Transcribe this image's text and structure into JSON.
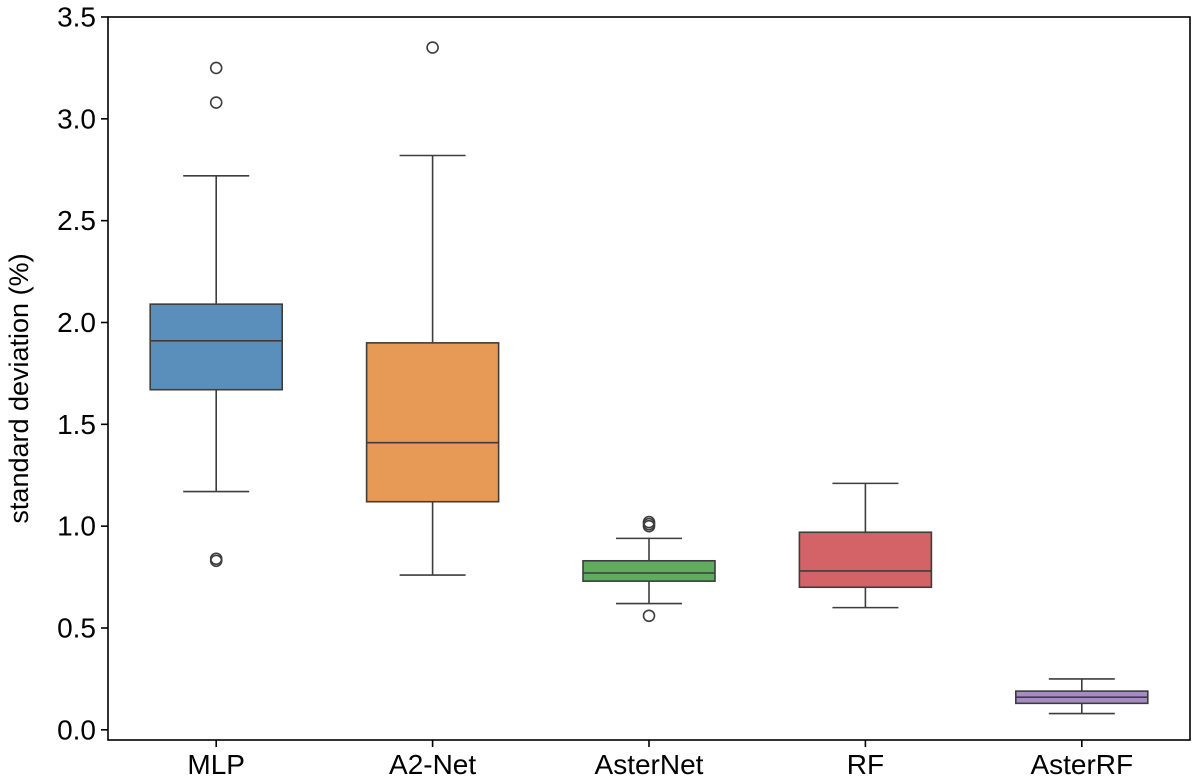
{
  "chart_data": {
    "type": "box",
    "title": "",
    "xlabel": "",
    "ylabel": "standard deviation (%)",
    "ylim": [
      -0.05,
      3.5
    ],
    "yticks": [
      0.0,
      0.5,
      1.0,
      1.5,
      2.0,
      2.5,
      3.0,
      3.5
    ],
    "ytick_labels": [
      "0.0",
      "0.5",
      "1.0",
      "1.5",
      "2.0",
      "2.5",
      "3.0",
      "3.5"
    ],
    "grid": false,
    "categories": [
      "MLP",
      "A2-Net",
      "AsterNet",
      "RF",
      "AsterRF"
    ],
    "series": [
      {
        "name": "MLP",
        "color": "#5a8fbc",
        "whisker_low": 1.17,
        "q1": 1.67,
        "median": 1.91,
        "q3": 2.09,
        "whisker_high": 2.72,
        "outliers": [
          0.83,
          0.84,
          3.08,
          3.25
        ]
      },
      {
        "name": "A2-Net",
        "color": "#e69a55",
        "whisker_low": 0.76,
        "q1": 1.12,
        "median": 1.41,
        "q3": 1.9,
        "whisker_high": 2.82,
        "outliers": [
          3.35
        ]
      },
      {
        "name": "AsterNet",
        "color": "#5fab5f",
        "whisker_low": 0.62,
        "q1": 0.73,
        "median": 0.77,
        "q3": 0.83,
        "whisker_high": 0.94,
        "outliers": [
          0.56,
          1.0,
          1.01,
          1.02
        ]
      },
      {
        "name": "RF",
        "color": "#d36366",
        "whisker_low": 0.6,
        "q1": 0.7,
        "median": 0.78,
        "q3": 0.97,
        "whisker_high": 1.21,
        "outliers": []
      },
      {
        "name": "AsterRF",
        "color": "#a88ac8",
        "whisker_low": 0.08,
        "q1": 0.13,
        "median": 0.16,
        "q3": 0.19,
        "whisker_high": 0.25,
        "outliers": []
      }
    ]
  }
}
